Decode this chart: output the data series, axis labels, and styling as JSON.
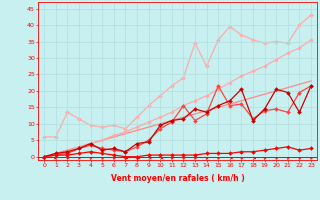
{
  "xlabel": "Vent moyen/en rafales ( km/h )",
  "bg_color": "#c8f0f0",
  "grid_color": "#b0dede",
  "xlim": [
    -0.5,
    23.5
  ],
  "ylim": [
    -1,
    47
  ],
  "yticks": [
    0,
    5,
    10,
    15,
    20,
    25,
    30,
    35,
    40,
    45
  ],
  "xticks": [
    0,
    1,
    2,
    3,
    4,
    5,
    6,
    7,
    8,
    9,
    10,
    11,
    12,
    13,
    14,
    15,
    16,
    17,
    18,
    19,
    20,
    21,
    22,
    23
  ],
  "lines": [
    {
      "x": [
        0,
        1,
        2,
        3,
        4,
        5,
        6,
        7,
        8,
        9,
        10,
        11,
        12,
        13,
        14,
        15,
        16,
        17,
        18,
        19,
        20,
        21,
        22,
        23
      ],
      "y": [
        6.0,
        6.0,
        13.5,
        11.5,
        9.5,
        9.0,
        9.5,
        8.5,
        12.0,
        15.5,
        18.5,
        21.5,
        24.0,
        34.5,
        27.5,
        35.5,
        39.5,
        37.0,
        35.5,
        34.5,
        35.0,
        34.5,
        40.0,
        43.0
      ],
      "color": "#ffaaaa",
      "lw": 0.9,
      "marker": "D",
      "ms": 2.0,
      "zorder": 1
    },
    {
      "x": [
        0,
        1,
        2,
        3,
        4,
        5,
        6,
        7,
        8,
        9,
        10,
        11,
        12,
        13,
        14,
        15,
        16,
        17,
        18,
        19,
        20,
        21,
        22,
        23
      ],
      "y": [
        0,
        1,
        2,
        3,
        4,
        5,
        6,
        7,
        8,
        9,
        10,
        11,
        12,
        13,
        14,
        15,
        16,
        17,
        18,
        19,
        20,
        21,
        22,
        23
      ],
      "color": "#ff8888",
      "lw": 0.9,
      "marker": null,
      "ms": 0,
      "zorder": 2
    },
    {
      "x": [
        0,
        1,
        2,
        3,
        4,
        5,
        6,
        7,
        8,
        9,
        10,
        11,
        12,
        13,
        14,
        15,
        16,
        17,
        18,
        19,
        20,
        21,
        22,
        23
      ],
      "y": [
        0,
        0.5,
        1.5,
        3.0,
        4.0,
        5.0,
        6.5,
        7.5,
        9.0,
        10.5,
        12.0,
        13.5,
        15.5,
        17.0,
        18.5,
        20.5,
        22.5,
        24.5,
        26.0,
        27.5,
        29.5,
        31.5,
        33.0,
        35.5
      ],
      "color": "#ffaaaa",
      "lw": 0.9,
      "marker": "D",
      "ms": 1.8,
      "zorder": 2
    },
    {
      "x": [
        0,
        1,
        2,
        3,
        4,
        5,
        6,
        7,
        8,
        9,
        10,
        11,
        12,
        13,
        14,
        15,
        16,
        17,
        18,
        19,
        20,
        21,
        22,
        23
      ],
      "y": [
        0,
        0.5,
        1.0,
        2.5,
        3.5,
        2.5,
        2.0,
        1.5,
        3.0,
        5.0,
        8.5,
        10.5,
        15.5,
        11.0,
        13.0,
        21.5,
        15.5,
        16.0,
        11.5,
        14.0,
        14.5,
        13.5,
        19.5,
        21.5
      ],
      "color": "#ff4444",
      "lw": 0.9,
      "marker": "D",
      "ms": 2.0,
      "zorder": 3
    },
    {
      "x": [
        0,
        1,
        2,
        3,
        4,
        5,
        6,
        7,
        8,
        9,
        10,
        11,
        12,
        13,
        14,
        15,
        16,
        17,
        18,
        19,
        20,
        21,
        22,
        23
      ],
      "y": [
        0,
        1.0,
        1.5,
        2.5,
        4.0,
        2.0,
        2.5,
        1.5,
        4.0,
        4.5,
        9.5,
        11.0,
        11.5,
        14.5,
        13.5,
        15.5,
        17.0,
        20.5,
        11.0,
        14.5,
        20.5,
        19.5,
        13.5,
        21.5
      ],
      "color": "#cc0000",
      "lw": 0.9,
      "marker": "D",
      "ms": 2.0,
      "zorder": 3
    },
    {
      "x": [
        0,
        1,
        2,
        3,
        4,
        5,
        6,
        7,
        8,
        9,
        10,
        11,
        12,
        13,
        14,
        15,
        16,
        17,
        18,
        19,
        20,
        21,
        22,
        23
      ],
      "y": [
        0,
        0.5,
        0.5,
        1.0,
        1.5,
        1.0,
        0.5,
        0.0,
        0.0,
        0.5,
        0.5,
        0.5,
        0.5,
        0.5,
        1.0,
        1.0,
        1.0,
        1.5,
        1.5,
        2.0,
        2.5,
        3.0,
        2.0,
        2.5
      ],
      "color": "#ff0000",
      "lw": 0.9,
      "marker": "D",
      "ms": 2.0,
      "zorder": 4
    }
  ],
  "arrow_angles": [
    225,
    225,
    45,
    45,
    45,
    45,
    45,
    90,
    90,
    90,
    90,
    45,
    45,
    45,
    45,
    45,
    90,
    45,
    90,
    45,
    45,
    45,
    45,
    45
  ],
  "arrow_color": "#ff0000"
}
